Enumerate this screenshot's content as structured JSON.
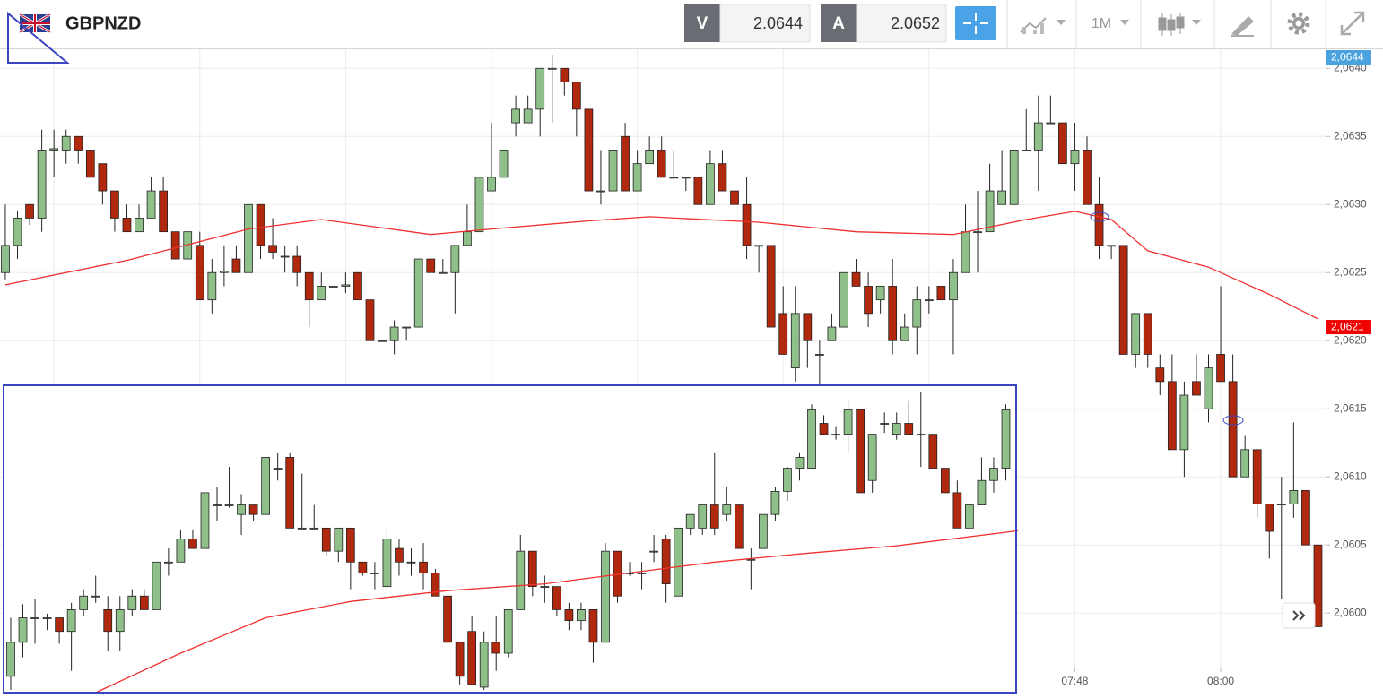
{
  "header": {
    "symbol": "GBPNZD",
    "bid_label": "V",
    "bid": "2.0644",
    "ask_label": "A",
    "ask": "2.0652",
    "timeframe": "1M"
  },
  "chart_data": [
    {
      "type": "candlestick",
      "up_color": "#8fc08a",
      "down_color": "#b0280e",
      "open": [
        2.0625,
        2.0627,
        2.063,
        2.0629,
        2.0634,
        2.0634,
        2.0635,
        2.0634,
        2.0633,
        2.0631,
        2.0629,
        2.0628,
        2.0629,
        2.0631,
        2.0628,
        2.0626,
        2.0627,
        2.0623,
        2.0625,
        2.0626,
        2.0625,
        2.063,
        2.0627,
        2.06262,
        2.06262,
        2.0625,
        2.0623,
        2.0624,
        2.0624,
        2.0625,
        2.0623,
        2.062,
        2.062,
        2.0621,
        2.0621,
        2.0626,
        2.0625,
        2.0625,
        2.0627,
        2.0628,
        2.0631,
        2.0632,
        2.0636,
        2.0636,
        2.0637,
        2.064,
        2.064,
        2.0639,
        2.0637,
        2.0631,
        2.0631,
        2.0635,
        2.0631,
        2.0633,
        2.0634,
        2.0632,
        2.0632,
        2.0632,
        2.063,
        2.0633,
        2.0631,
        2.063,
        2.0627,
        2.0627,
        2.0622,
        2.0618,
        2.0622,
        2.0619,
        2.062,
        2.0621,
        2.0625,
        2.0624,
        2.0623,
        2.0624,
        2.062,
        2.0621,
        2.0623,
        2.0624,
        2.0623,
        2.0625,
        2.0628,
        2.0628,
        2.063,
        2.063,
        2.0634,
        2.0634,
        2.0636,
        2.0636,
        2.0633,
        2.0634,
        2.063,
        2.0627,
        2.0627,
        2.0619,
        2.0622,
        2.0618,
        2.0617,
        2.0612,
        2.0617,
        2.0615,
        2.0619,
        2.0617,
        2.061,
        2.0612,
        2.0608,
        2.0608,
        2.0608,
        2.0609,
        2.0605
      ],
      "high": [
        2.063,
        2.06295,
        2.063,
        2.06355,
        2.06355,
        2.06355,
        2.0635,
        2.0634,
        2.0633,
        2.0631,
        2.063,
        2.063,
        2.0632,
        2.0632,
        2.0628,
        2.0628,
        2.0628,
        2.0626,
        2.0627,
        2.0627,
        2.063,
        2.063,
        2.0629,
        2.0627,
        2.0627,
        2.0625,
        2.0625,
        2.0624,
        2.0625,
        2.0625,
        2.0623,
        2.062,
        2.06215,
        2.0621,
        2.0626,
        2.0626,
        2.0626,
        2.0627,
        2.063,
        2.0632,
        2.0636,
        2.0634,
        2.0638,
        2.0638,
        2.064,
        2.0641,
        2.064,
        2.0639,
        2.0637,
        2.0634,
        2.0634,
        2.0636,
        2.0634,
        2.0635,
        2.0635,
        2.0634,
        2.0632,
        2.0632,
        2.0634,
        2.0634,
        2.0631,
        2.0632,
        2.0627,
        2.0627,
        2.0624,
        2.0624,
        2.0622,
        2.062,
        2.0622,
        2.0625,
        2.0626,
        2.0625,
        2.0624,
        2.0626,
        2.0622,
        2.0624,
        2.0624,
        2.0624,
        2.0626,
        2.063,
        2.0631,
        2.0633,
        2.0634,
        2.0634,
        2.0637,
        2.0638,
        2.0638,
        2.0636,
        2.0636,
        2.0635,
        2.0632,
        2.0627,
        2.0627,
        2.0622,
        2.0622,
        2.0619,
        2.0619,
        2.0617,
        2.0619,
        2.0619,
        2.0624,
        2.0619,
        2.0613,
        2.0612,
        2.0608,
        2.061,
        2.0614,
        2.0609,
        2.0605
      ],
      "low": [
        2.06245,
        2.0626,
        2.06285,
        2.0628,
        2.0632,
        2.0633,
        2.0633,
        2.0632,
        2.063,
        2.0628,
        2.0628,
        2.0628,
        2.0629,
        2.0628,
        2.0626,
        2.0626,
        2.0623,
        2.0622,
        2.0624,
        2.0625,
        2.0625,
        2.0626,
        2.0626,
        2.0625,
        2.0624,
        2.0621,
        2.0623,
        2.0624,
        2.06235,
        2.0623,
        2.062,
        2.062,
        2.0619,
        2.062,
        2.0621,
        2.0625,
        2.0625,
        2.0622,
        2.0627,
        2.0628,
        2.0631,
        2.0632,
        2.0635,
        2.0636,
        2.0635,
        2.0636,
        2.0638,
        2.0635,
        2.0631,
        2.063,
        2.0629,
        2.0631,
        2.0631,
        2.0633,
        2.0632,
        2.0632,
        2.0631,
        2.063,
        2.063,
        2.0631,
        2.063,
        2.0626,
        2.0625,
        2.0621,
        2.0619,
        2.0617,
        2.0618,
        2.0616,
        2.062,
        2.0621,
        2.0624,
        2.0621,
        2.0622,
        2.0619,
        2.062,
        2.0619,
        2.0622,
        2.0623,
        2.0619,
        2.0625,
        2.0625,
        2.0628,
        2.063,
        2.063,
        2.0634,
        2.0631,
        2.0636,
        2.0633,
        2.0631,
        2.063,
        2.0626,
        2.0626,
        2.0619,
        2.0618,
        2.0618,
        2.0616,
        2.0612,
        2.061,
        2.0616,
        2.0614,
        2.0617,
        2.061,
        2.061,
        2.0607,
        2.0604,
        2.0601,
        2.0607,
        2.0605,
        2.0599
      ],
      "close": [
        2.0627,
        2.0629,
        2.0629,
        2.0634,
        2.06341,
        2.0635,
        2.0634,
        2.0632,
        2.0631,
        2.0629,
        2.0628,
        2.0629,
        2.0631,
        2.0628,
        2.0626,
        2.0628,
        2.0623,
        2.0625,
        2.06251,
        2.0625,
        2.063,
        2.0627,
        2.06265,
        2.06262,
        2.0625,
        2.0623,
        2.0624,
        2.0624,
        2.06241,
        2.0623,
        2.062,
        2.062,
        2.0621,
        2.0621,
        2.0626,
        2.0625,
        2.0625,
        2.0627,
        2.0628,
        2.0632,
        2.0632,
        2.0634,
        2.0637,
        2.0637,
        2.064,
        2.064,
        2.0639,
        2.0637,
        2.0631,
        2.0631,
        2.0634,
        2.0631,
        2.0633,
        2.0634,
        2.0632,
        2.0632,
        2.0632,
        2.063,
        2.0633,
        2.0631,
        2.063,
        2.0627,
        2.0627,
        2.0621,
        2.0619,
        2.0622,
        2.062,
        2.0619,
        2.0621,
        2.0625,
        2.0624,
        2.0622,
        2.0624,
        2.062,
        2.0621,
        2.0623,
        2.0623,
        2.0623,
        2.0625,
        2.0628,
        2.0628,
        2.0631,
        2.0631,
        2.0634,
        2.0634,
        2.0636,
        2.0636,
        2.0633,
        2.0634,
        2.063,
        2.0627,
        2.0627,
        2.0619,
        2.0622,
        2.0619,
        2.0617,
        2.0612,
        2.0616,
        2.0616,
        2.0618,
        2.0617,
        2.061,
        2.0612,
        2.0608,
        2.0606,
        2.0608,
        2.0609,
        2.0605,
        2.0599
      ],
      "ma": {
        "color": "#f03030",
        "x": [
          0,
          10,
          20,
          26,
          35,
          40,
          48,
          53,
          62,
          70,
          78,
          84,
          88,
          91,
          94,
          99,
          104,
          108
        ],
        "values": [
          2.06241,
          2.06259,
          2.06282,
          2.06289,
          2.06278,
          2.06282,
          2.06288,
          2.06291,
          2.06287,
          2.0628,
          2.06278,
          2.06289,
          2.06295,
          2.06289,
          2.06266,
          2.06254,
          2.06234,
          2.06216
        ]
      },
      "xlim": [
        -0.44,
        108.63
      ],
      "ylim": [
        2.0596,
        2.06414
      ],
      "yticks": [
        {
          "value": 2.06,
          "label": "2,0600"
        },
        {
          "value": 2.0605,
          "label": "2,0605"
        },
        {
          "value": 2.061,
          "label": "2,0610"
        },
        {
          "value": 2.0615,
          "label": "2,0615"
        },
        {
          "value": 2.062,
          "label": "2,0620"
        },
        {
          "value": 2.0625,
          "label": "2,0625"
        },
        {
          "value": 2.063,
          "label": "2,0630"
        },
        {
          "value": 2.0635,
          "label": "2,0635"
        },
        {
          "value": 2.064,
          "label": "2,0640"
        }
      ],
      "xticks": [
        {
          "value": 88,
          "label": "07:48"
        },
        {
          "value": 100,
          "label": "08:00"
        }
      ],
      "price_tags": [
        {
          "value": 2.0644,
          "label": "2,0644",
          "color": "#4aa3df"
        },
        {
          "value": 2.0621,
          "label": "2,0621",
          "color": "#f00000"
        }
      ],
      "grid": true
    },
    {
      "type": "candlestick",
      "up_color": "#8fc08a",
      "down_color": "#b0280e",
      "open": [
        2.05986,
        2.06011,
        2.06029,
        2.06029,
        2.06029,
        2.06019,
        2.06035,
        2.06045,
        2.06035,
        2.06019,
        2.06035,
        2.06045,
        2.06035,
        2.0607,
        2.0607,
        2.06087,
        2.0608,
        2.06112,
        2.06112,
        2.06105,
        2.06112,
        2.06105,
        2.06139,
        2.06147,
        2.06095,
        2.06095,
        2.06095,
        2.06078,
        2.06095,
        2.0607,
        2.06062,
        2.06052,
        2.0608,
        2.0607,
        2.0607,
        2.06062,
        2.06045,
        2.06011,
        2.06019,
        2.05978,
        2.06011,
        2.06003,
        2.06035,
        2.06078,
        2.06052,
        2.06052,
        2.06035,
        2.06027,
        2.06035,
        2.06011,
        2.06078,
        2.06062,
        2.06062,
        2.06078,
        2.06087,
        2.06045,
        2.06095,
        2.06095,
        2.06112,
        2.06105,
        2.06112,
        2.06072,
        2.0608,
        2.06105,
        2.06122,
        2.06139,
        2.06139,
        2.06172,
        2.06164,
        2.06164,
        2.06182,
        2.0613,
        2.06172,
        2.06164,
        2.06172,
        2.06164,
        2.06164,
        2.06139,
        2.06121,
        2.06095,
        2.06112,
        2.0613,
        2.06139
      ],
      "high": [
        2.06029,
        2.06039,
        2.06043,
        2.06032,
        2.06029,
        2.0604,
        2.0605,
        2.0606,
        2.06045,
        2.06045,
        2.0605,
        2.0605,
        2.0607,
        2.0608,
        2.06094,
        2.06094,
        2.06121,
        2.06125,
        2.0614,
        2.0612,
        2.06112,
        2.06147,
        2.0615,
        2.0615,
        2.06135,
        2.06112,
        2.06095,
        2.06095,
        2.06095,
        2.0607,
        2.0607,
        2.06095,
        2.06087,
        2.0608,
        2.06084,
        2.06065,
        2.06045,
        2.06011,
        2.0603,
        2.06019,
        2.0603,
        2.06035,
        2.0609,
        2.06078,
        2.0606,
        2.06052,
        2.0604,
        2.0604,
        2.06035,
        2.06084,
        2.06078,
        2.0607,
        2.0607,
        2.0609,
        2.0609,
        2.06095,
        2.06105,
        2.06112,
        2.0615,
        2.06125,
        2.06112,
        2.0608,
        2.06105,
        2.06125,
        2.0614,
        2.0615,
        2.06186,
        2.06178,
        2.0617,
        2.06189,
        2.06182,
        2.06164,
        2.0618,
        2.0618,
        2.06189,
        2.06195,
        2.06164,
        2.06139,
        2.0613,
        2.06112,
        2.06147,
        2.06147,
        2.06186
      ],
      "low": [
        2.05976,
        2.06,
        2.0601,
        2.0602,
        2.0601,
        2.0599,
        2.0603,
        2.0604,
        2.06005,
        2.06005,
        2.0603,
        2.06035,
        2.06035,
        2.0606,
        2.0607,
        2.0608,
        2.0608,
        2.061,
        2.0611,
        2.0609,
        2.061,
        2.06105,
        2.0613,
        2.06095,
        2.06095,
        2.06095,
        2.06075,
        2.0607,
        2.0605,
        2.0606,
        2.0605,
        2.0605,
        2.0606,
        2.0606,
        2.0605,
        2.06045,
        2.06011,
        2.0598,
        2.0598,
        2.05976,
        2.0599,
        2.06,
        2.06035,
        2.06045,
        2.0604,
        2.0603,
        2.0602,
        2.0602,
        2.05996,
        2.06011,
        2.0604,
        2.0606,
        2.0605,
        2.0607,
        2.0604,
        2.06045,
        2.0609,
        2.0609,
        2.0609,
        2.061,
        2.0608,
        2.0605,
        2.0608,
        2.061,
        2.06115,
        2.0613,
        2.06139,
        2.06164,
        2.0616,
        2.0615,
        2.06121,
        2.06121,
        2.06165,
        2.0616,
        2.06164,
        2.0614,
        2.06139,
        2.06121,
        2.06095,
        2.06095,
        2.06112,
        2.06121,
        2.0613
      ],
      "close": [
        2.06011,
        2.06029,
        2.06029,
        2.06029,
        2.06019,
        2.06035,
        2.06045,
        2.06045,
        2.06019,
        2.06035,
        2.06045,
        2.06035,
        2.0607,
        2.0607,
        2.06087,
        2.0608,
        2.06121,
        2.06112,
        2.06112,
        2.06112,
        2.06105,
        2.06147,
        2.06139,
        2.06095,
        2.06095,
        2.06095,
        2.06078,
        2.06095,
        2.0607,
        2.06062,
        2.06062,
        2.06087,
        2.0607,
        2.0607,
        2.06062,
        2.06045,
        2.06011,
        2.05986,
        2.0598,
        2.06011,
        2.06003,
        2.06035,
        2.06078,
        2.06052,
        2.06052,
        2.06035,
        2.06027,
        2.06035,
        2.06011,
        2.06078,
        2.06045,
        2.06062,
        2.06062,
        2.06078,
        2.06054,
        2.06095,
        2.06105,
        2.06112,
        2.06095,
        2.06112,
        2.0608,
        2.06072,
        2.06105,
        2.06122,
        2.06139,
        2.06147,
        2.06182,
        2.06164,
        2.06164,
        2.06182,
        2.06121,
        2.06164,
        2.06172,
        2.06172,
        2.06164,
        2.06164,
        2.06139,
        2.06121,
        2.06095,
        2.06112,
        2.0613,
        2.06139,
        2.06182
      ],
      "ma": {
        "color": "#f03030",
        "x": [
          7,
          14,
          21,
          28,
          36,
          44,
          51,
          58,
          65,
          73,
          83
        ],
        "values": [
          2.05974,
          2.06003,
          2.06029,
          2.06041,
          2.06049,
          2.06054,
          2.06062,
          2.0607,
          2.06076,
          2.06082,
          2.06093
        ]
      },
      "xlim": [
        -0.59,
        82.85
      ],
      "ylim": [
        2.05974,
        2.062
      ]
    }
  ]
}
